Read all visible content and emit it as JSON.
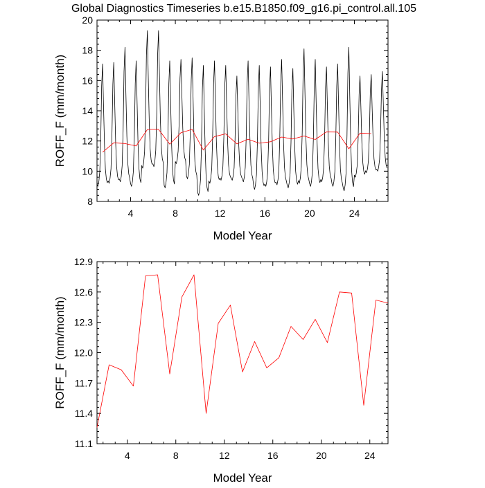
{
  "title": "Global Diagnostics Timeseries b.e15.B1850.f09_g16.pi_control.all.105",
  "colors": {
    "monthly": "#000000",
    "annual": "#ff0000",
    "frame": "#000000"
  },
  "chart_data": [
    {
      "id": "monthly",
      "type": "line",
      "xlabel": "Model Year",
      "ylabel": "ROFF_F (mm/month)",
      "xlim": [
        1,
        27
      ],
      "ylim": [
        8,
        20
      ],
      "xticks": [
        4,
        8,
        12,
        16,
        20,
        24
      ],
      "yticks": [
        8,
        10,
        12,
        14,
        16,
        18,
        20
      ],
      "xtick_labels": [
        "4",
        "8",
        "12",
        "16",
        "20",
        "24"
      ],
      "ytick_labels": [
        "8",
        "10",
        "12",
        "14",
        "16",
        "18",
        "20"
      ],
      "monthly_peaks": [
        17.1,
        17.2,
        18.2,
        17.3,
        19.3,
        19.3,
        17.3,
        17.4,
        17.5,
        17.0,
        17.3,
        17.0,
        16.3,
        17.3,
        17.0,
        16.9,
        17.4,
        16.8,
        18.1,
        17.4,
        16.9,
        17.1,
        18.2,
        16.3,
        16.4,
        16.6
      ],
      "monthly_troughs": [
        9.0,
        9.2,
        9.3,
        9.0,
        10.2,
        10.3,
        8.9,
        10.5,
        9.5,
        8.4,
        9.2,
        9.4,
        9.4,
        9.3,
        8.8,
        9.0,
        9.1,
        8.9,
        9.2,
        9.0,
        9.3,
        9.0,
        8.7,
        9.6,
        9.9,
        10.0
      ],
      "series": [
        {
          "name": "",
          "style": "monthly",
          "x": [],
          "y": []
        },
        {
          "name": "",
          "style": "annual",
          "x": [
            1.5,
            2.5,
            3.5,
            4.5,
            5.5,
            6.5,
            7.5,
            8.5,
            9.5,
            10.5,
            11.5,
            12.5,
            13.5,
            14.5,
            15.5,
            16.5,
            17.5,
            18.5,
            19.5,
            20.5,
            21.5,
            22.5,
            23.5,
            24.5,
            25.5
          ],
          "y": [
            11.26,
            11.88,
            11.83,
            11.67,
            12.76,
            12.77,
            11.79,
            12.55,
            12.77,
            11.4,
            12.29,
            12.47,
            11.81,
            12.11,
            11.85,
            11.95,
            12.26,
            12.13,
            12.33,
            12.1,
            12.6,
            12.59,
            11.48,
            12.52,
            12.49
          ]
        }
      ]
    },
    {
      "id": "annual",
      "type": "line",
      "xlabel": "Model Year",
      "ylabel": "ROFF_F (mm/month)",
      "xlim": [
        1.5,
        25.5
      ],
      "ylim": [
        11.1,
        12.9
      ],
      "xticks": [
        4,
        8,
        12,
        16,
        20,
        24
      ],
      "yticks": [
        11.1,
        11.4,
        11.7,
        12.0,
        12.3,
        12.6,
        12.9
      ],
      "xtick_labels": [
        "4",
        "8",
        "12",
        "16",
        "20",
        "24"
      ],
      "ytick_labels": [
        "11.1",
        "11.4",
        "11.7",
        "12.0",
        "12.3",
        "12.6",
        "12.9"
      ],
      "series": [
        {
          "name": "",
          "style": "annual",
          "x": [
            1.5,
            2.5,
            3.5,
            4.5,
            5.5,
            6.5,
            7.5,
            8.5,
            9.5,
            10.5,
            11.5,
            12.5,
            13.5,
            14.5,
            15.5,
            16.5,
            17.5,
            18.5,
            19.5,
            20.5,
            21.5,
            22.5,
            23.5,
            24.5,
            25.5
          ],
          "y": [
            11.26,
            11.88,
            11.83,
            11.67,
            12.76,
            12.77,
            11.79,
            12.55,
            12.77,
            11.4,
            12.29,
            12.47,
            11.81,
            12.11,
            11.85,
            11.95,
            12.26,
            12.13,
            12.33,
            12.1,
            12.6,
            12.59,
            11.48,
            12.52,
            12.49
          ]
        }
      ]
    }
  ]
}
